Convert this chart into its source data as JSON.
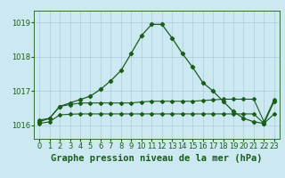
{
  "title": "Graphe pression niveau de la mer (hPa)",
  "background_color": "#cce8f0",
  "grid_color": "#aaccdd",
  "line_color": "#1a5c1a",
  "xlim": [
    -0.5,
    23.5
  ],
  "ylim": [
    1015.6,
    1019.35
  ],
  "yticks": [
    1016,
    1017,
    1018,
    1019
  ],
  "xticks": [
    0,
    1,
    2,
    3,
    4,
    5,
    6,
    7,
    8,
    9,
    10,
    11,
    12,
    13,
    14,
    15,
    16,
    17,
    18,
    19,
    20,
    21,
    22,
    23
  ],
  "curve1_x": [
    0,
    1,
    2,
    3,
    4,
    5,
    6,
    7,
    8,
    9,
    10,
    11,
    12,
    13,
    14,
    15,
    16,
    17,
    18,
    19,
    20,
    21,
    22,
    23
  ],
  "curve1_y": [
    1016.1,
    1016.2,
    1016.55,
    1016.65,
    1016.75,
    1016.85,
    1017.05,
    1017.3,
    1017.6,
    1018.1,
    1018.62,
    1018.95,
    1018.95,
    1018.55,
    1018.1,
    1017.7,
    1017.25,
    1017.0,
    1016.7,
    1016.4,
    1016.2,
    1016.1,
    1016.05,
    1016.7
  ],
  "curve2_x": [
    0,
    1,
    2,
    3,
    4,
    5,
    6,
    7,
    8,
    9,
    10,
    11,
    12,
    13,
    14,
    15,
    16,
    17,
    18,
    19,
    20,
    21,
    22,
    23
  ],
  "curve2_y": [
    1016.15,
    1016.2,
    1016.55,
    1016.6,
    1016.65,
    1016.65,
    1016.65,
    1016.65,
    1016.65,
    1016.65,
    1016.68,
    1016.7,
    1016.7,
    1016.7,
    1016.7,
    1016.7,
    1016.72,
    1016.74,
    1016.76,
    1016.76,
    1016.76,
    1016.76,
    1016.1,
    1016.75
  ],
  "curve3_x": [
    0,
    1,
    2,
    3,
    4,
    5,
    6,
    7,
    8,
    9,
    10,
    11,
    12,
    13,
    14,
    15,
    16,
    17,
    18,
    19,
    20,
    21,
    22,
    23
  ],
  "curve3_y": [
    1016.05,
    1016.1,
    1016.3,
    1016.32,
    1016.33,
    1016.33,
    1016.33,
    1016.33,
    1016.33,
    1016.33,
    1016.33,
    1016.33,
    1016.33,
    1016.33,
    1016.33,
    1016.33,
    1016.33,
    1016.33,
    1016.33,
    1016.33,
    1016.33,
    1016.33,
    1016.05,
    1016.33
  ],
  "title_fontsize": 7.5,
  "tick_fontsize": 6.0
}
